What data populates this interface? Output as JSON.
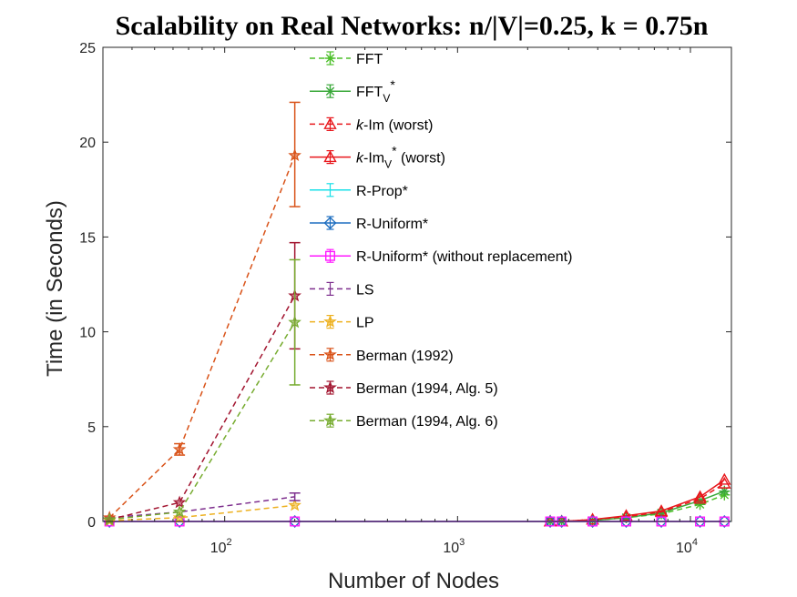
{
  "chart_data": {
    "type": "line",
    "title": "Scalability on Real Networks: n/|V|=0.25, k = 0.75n",
    "xlabel": "Number of Nodes",
    "ylabel": "Time (in Seconds)",
    "xscale": "log",
    "xlim": [
      30,
      15000
    ],
    "ylim": [
      0,
      25
    ],
    "x_ticks": [
      {
        "value": 100,
        "base": "10",
        "exp": "2"
      },
      {
        "value": 1000,
        "base": "10",
        "exp": "3"
      },
      {
        "value": 10000,
        "base": "10",
        "exp": "4"
      }
    ],
    "y_ticks": [
      0,
      5,
      10,
      15,
      20,
      25
    ],
    "grid": false,
    "legend_position": "top-center",
    "series": [
      {
        "name": "FFT",
        "legend": {
          "main": "FFT"
        },
        "color": "#4dbf2a",
        "dashed": true,
        "marker": "asterisk",
        "x": [
          2500,
          2800,
          3800,
          5300,
          7500,
          11000,
          14000
        ],
        "y": [
          0.0,
          0.0,
          0.05,
          0.2,
          0.4,
          0.9,
          1.4
        ]
      },
      {
        "name": "FFT_V*",
        "legend": {
          "main": "FFT",
          "sub": "V",
          "sup": "*"
        },
        "color": "#3aa83a",
        "dashed": false,
        "marker": "asterisk",
        "x": [
          2500,
          2800,
          3800,
          5300,
          7500,
          11000,
          14000
        ],
        "y": [
          0.0,
          0.0,
          0.05,
          0.2,
          0.45,
          1.1,
          1.6
        ]
      },
      {
        "name": "k-Im (worst)",
        "legend": {
          "italic": "k",
          "main": "-Im (worst)"
        },
        "color": "#e8171c",
        "dashed": true,
        "marker": "triangle",
        "x": [
          2500,
          2800,
          3800,
          5300,
          7500,
          11000,
          14000
        ],
        "y": [
          0.0,
          0.0,
          0.1,
          0.25,
          0.5,
          1.2,
          2.0
        ]
      },
      {
        "name": "k-Im_V* (worst)",
        "legend": {
          "italic": "k",
          "main": "-Im",
          "sub": "V",
          "sup": "*",
          "tail": " (worst)"
        },
        "color": "#e8171c",
        "dashed": false,
        "marker": "triangle",
        "x": [
          2500,
          2800,
          3800,
          5300,
          7500,
          11000,
          14000
        ],
        "y": [
          0.0,
          0.0,
          0.1,
          0.3,
          0.55,
          1.3,
          2.2
        ]
      },
      {
        "name": "R-Prop*",
        "legend": {
          "main": "R-Prop*"
        },
        "color": "#19e0e8",
        "dashed": false,
        "marker": "none",
        "x": [
          32,
          64,
          200,
          2500,
          2800,
          3800,
          5300,
          7500,
          11000,
          14000
        ],
        "y": [
          0,
          0,
          0,
          0,
          0,
          0,
          0,
          0,
          0,
          0
        ]
      },
      {
        "name": "R-Uniform*",
        "legend": {
          "main": "R-Uniform*"
        },
        "color": "#1f6fc0",
        "dashed": false,
        "marker": "diamond",
        "x": [
          32,
          64,
          200,
          2500,
          2800,
          3800,
          5300,
          7500,
          11000,
          14000
        ],
        "y": [
          0,
          0,
          0,
          0,
          0,
          0,
          0,
          0,
          0,
          0
        ]
      },
      {
        "name": "R-Uniform* (without replacement)",
        "legend": {
          "main": "R-Uniform* (without replacement)"
        },
        "color": "#ff19ff",
        "dashed": false,
        "marker": "square",
        "x": [
          32,
          64,
          200,
          2500,
          2800,
          3800,
          5300,
          7500,
          11000,
          14000
        ],
        "y": [
          0,
          0,
          0,
          0,
          0,
          0,
          0,
          0,
          0,
          0
        ]
      },
      {
        "name": "LS",
        "legend": {
          "main": "LS"
        },
        "color": "#7e2f8e",
        "dashed": true,
        "marker": "none",
        "x": [
          32,
          64,
          200
        ],
        "y": [
          0.2,
          0.5,
          1.3
        ]
      },
      {
        "name": "LP",
        "legend": {
          "main": "LP"
        },
        "color": "#edb120",
        "dashed": true,
        "marker": "star",
        "x": [
          32,
          64,
          200
        ],
        "y": [
          0.05,
          0.2,
          0.85
        ]
      },
      {
        "name": "Berman (1992)",
        "legend": {
          "main": "Berman (1992)"
        },
        "color": "#d95319",
        "dashed": true,
        "marker": "star",
        "x": [
          32,
          64,
          200
        ],
        "y": [
          0.2,
          3.8,
          19.3
        ]
      },
      {
        "name": "Berman (1994, Alg. 5)",
        "legend": {
          "main": "Berman (1994, Alg. 5)"
        },
        "color": "#a2142f",
        "dashed": true,
        "marker": "star",
        "x": [
          32,
          64,
          200
        ],
        "y": [
          0.1,
          1.0,
          11.9
        ]
      },
      {
        "name": "Berman (1994, Alg. 6)",
        "legend": {
          "main": "Berman (1994, Alg. 6)"
        },
        "color": "#77ac30",
        "dashed": true,
        "marker": "star",
        "x": [
          32,
          64,
          200
        ],
        "y": [
          0.1,
          0.5,
          10.5
        ]
      }
    ],
    "error_bars": [
      {
        "series": "Berman (1992)",
        "x": 200,
        "low": 16.6,
        "high": 22.1
      },
      {
        "series": "Berman (1994, Alg. 5)",
        "x": 200,
        "low": 9.1,
        "high": 14.7
      },
      {
        "series": "Berman (1994, Alg. 6)",
        "x": 200,
        "low": 7.2,
        "high": 13.8
      },
      {
        "series": "Berman (1992)",
        "x": 64,
        "low": 3.5,
        "high": 4.1
      },
      {
        "series": "LS",
        "x": 200,
        "low": 1.1,
        "high": 1.5
      }
    ]
  }
}
